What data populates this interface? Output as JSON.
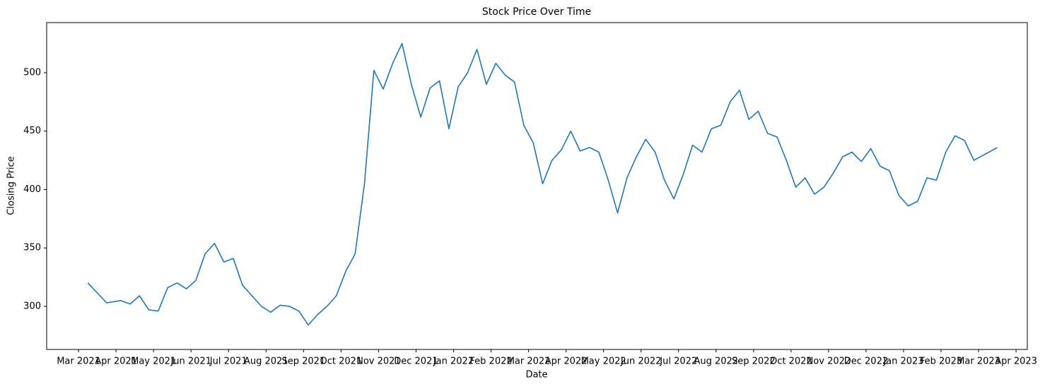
{
  "chart_data": {
    "type": "line",
    "title": "Stock Price Over Time",
    "x_label": "Date",
    "y_label": "Closing Price",
    "color": "#1f77b4",
    "x": [
      "2021-03",
      "2021-03",
      "2021-04",
      "2021-04",
      "2021-04",
      "2021-04",
      "2021-05",
      "2021-05",
      "2021-05",
      "2021-05",
      "2021-06",
      "2021-06",
      "2021-06",
      "2021-06",
      "2021-07",
      "2021-07",
      "2021-07",
      "2021-07",
      "2021-08",
      "2021-08",
      "2021-08",
      "2021-08",
      "2021-09",
      "2021-09",
      "2021-09",
      "2021-09",
      "2021-10",
      "2021-10",
      "2021-10",
      "2021-10",
      "2021-11",
      "2021-11",
      "2021-11",
      "2021-11",
      "2021-12",
      "2021-12",
      "2021-12",
      "2021-12",
      "2022-01",
      "2022-01",
      "2022-01",
      "2022-01",
      "2022-02",
      "2022-02",
      "2022-02",
      "2022-02",
      "2022-03",
      "2022-03",
      "2022-03",
      "2022-03",
      "2022-04",
      "2022-04",
      "2022-04",
      "2022-04",
      "2022-05",
      "2022-05",
      "2022-05",
      "2022-05",
      "2022-06",
      "2022-06",
      "2022-06",
      "2022-06",
      "2022-07",
      "2022-07",
      "2022-07",
      "2022-07",
      "2022-08",
      "2022-08",
      "2022-08",
      "2022-08",
      "2022-09",
      "2022-09",
      "2022-09",
      "2022-09",
      "2022-10",
      "2022-10",
      "2022-10",
      "2022-10",
      "2022-11",
      "2022-11",
      "2022-11",
      "2022-11",
      "2022-12",
      "2022-12",
      "2022-12",
      "2022-12",
      "2023-01",
      "2023-01",
      "2023-01",
      "2023-01",
      "2023-02",
      "2023-02",
      "2023-02",
      "2023-02",
      "2023-03"
    ],
    "values": [
      320,
      303,
      305,
      302,
      309,
      297,
      296,
      316,
      320,
      315,
      322,
      345,
      354,
      338,
      341,
      318,
      309,
      300,
      295,
      301,
      300,
      296,
      284,
      293,
      300,
      309,
      330,
      345,
      405,
      502,
      486,
      508,
      525,
      490,
      462,
      487,
      493,
      452,
      488,
      500,
      520,
      490,
      508,
      498,
      492,
      455,
      440,
      405,
      425,
      434,
      450,
      433,
      436,
      432,
      408,
      380,
      410,
      428,
      443,
      432,
      408,
      392,
      413,
      438,
      432,
      452,
      455,
      475,
      485,
      460,
      467,
      448,
      445,
      425,
      402,
      410,
      396,
      402,
      414,
      428,
      432,
      424,
      435,
      420,
      416,
      395,
      386,
      390,
      410,
      408,
      432,
      446,
      442,
      425,
      436
    ],
    "xlim": [
      "2021-03",
      "2023-04"
    ],
    "xticks": [
      {
        "value": "2021-03",
        "label": "Mar 2021"
      },
      {
        "value": "2021-04",
        "label": "Apr 2021"
      },
      {
        "value": "2021-05",
        "label": "May 2021"
      },
      {
        "value": "2021-06",
        "label": "Jun 2021"
      },
      {
        "value": "2021-07",
        "label": "Jul 2021"
      },
      {
        "value": "2021-08",
        "label": "Aug 2021"
      },
      {
        "value": "2021-09",
        "label": "Sep 2021"
      },
      {
        "value": "2021-10",
        "label": "Oct 2021"
      },
      {
        "value": "2021-11",
        "label": "Nov 2021"
      },
      {
        "value": "2021-12",
        "label": "Dec 2021"
      },
      {
        "value": "2022-01",
        "label": "Jan 2022"
      },
      {
        "value": "2022-02",
        "label": "Feb 2022"
      },
      {
        "value": "2022-03",
        "label": "Mar 2022"
      },
      {
        "value": "2022-04",
        "label": "Apr 2022"
      },
      {
        "value": "2022-05",
        "label": "May 2022"
      },
      {
        "value": "2022-06",
        "label": "Jun 2022"
      },
      {
        "value": "2022-07",
        "label": "Jul 2022"
      },
      {
        "value": "2022-08",
        "label": "Aug 2022"
      },
      {
        "value": "2022-09",
        "label": "Sep 2022"
      },
      {
        "value": "2022-10",
        "label": "Oct 2022"
      },
      {
        "value": "2022-11",
        "label": "Nov 2022"
      },
      {
        "value": "2022-12",
        "label": "Dec 2022"
      },
      {
        "value": "2023-01",
        "label": "Jan 2023"
      },
      {
        "value": "2023-02",
        "label": "Feb 2023"
      },
      {
        "value": "2023-03",
        "label": "Mar 2023"
      },
      {
        "value": "2023-04",
        "label": "Apr 2023"
      }
    ],
    "ylim": [
      263.1,
      542.9
    ],
    "yticks": [
      300,
      350,
      400,
      450,
      500
    ]
  }
}
